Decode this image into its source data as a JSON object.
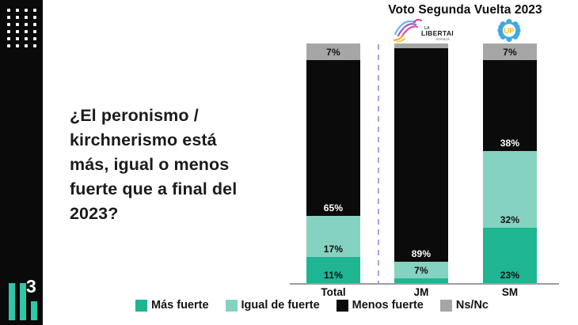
{
  "sidebar": {
    "logo_superscript": "3"
  },
  "question": {
    "lines": [
      "¿El peronismo /",
      "kirchnerismo está",
      "más, igual o menos",
      "fuerte que a final del",
      "2023?"
    ]
  },
  "header": {
    "logos": {
      "la_libertad_avanza": {
        "line1": "LA",
        "line2": "LIBERTAD",
        "line3": "AVANZA"
      },
      "union_por_la_patria": {
        "text": "UP"
      }
    }
  },
  "theme": {
    "sidebar_bg": "#0a0a0a",
    "brand_teal": "#2fc7a7",
    "divider_lavender": "#b69ce3",
    "axis_gray": "#9d9d9d",
    "label_dark": "#111111",
    "label_light": "#ffffff"
  },
  "chart_data": {
    "type": "bar",
    "stacked": true,
    "title": "Voto Segunda Vuelta 2023",
    "categories": [
      "Total",
      "JM",
      "SM"
    ],
    "series": [
      {
        "name": "Más fuerte",
        "color": "#1eb592",
        "values": [
          11,
          2,
          23
        ],
        "labels": [
          "11%",
          "",
          "23%"
        ]
      },
      {
        "name": "Igual de fuerte",
        "color": "#85d2c1",
        "values": [
          17,
          7,
          32
        ],
        "labels": [
          "17%",
          "7%",
          "32%"
        ]
      },
      {
        "name": "Menos fuerte",
        "color": "#0b0b0b",
        "values": [
          65,
          89,
          38
        ],
        "labels": [
          "65%",
          "89%",
          "38%"
        ]
      },
      {
        "name": "Ns/Nc",
        "color": "#a6a6a6",
        "values": [
          7,
          2,
          7
        ],
        "labels": [
          "7%",
          "",
          "7%"
        ]
      }
    ],
    "ylim": [
      0,
      100
    ],
    "value_unit": "%",
    "legend_position": "bottom",
    "grid": false
  }
}
